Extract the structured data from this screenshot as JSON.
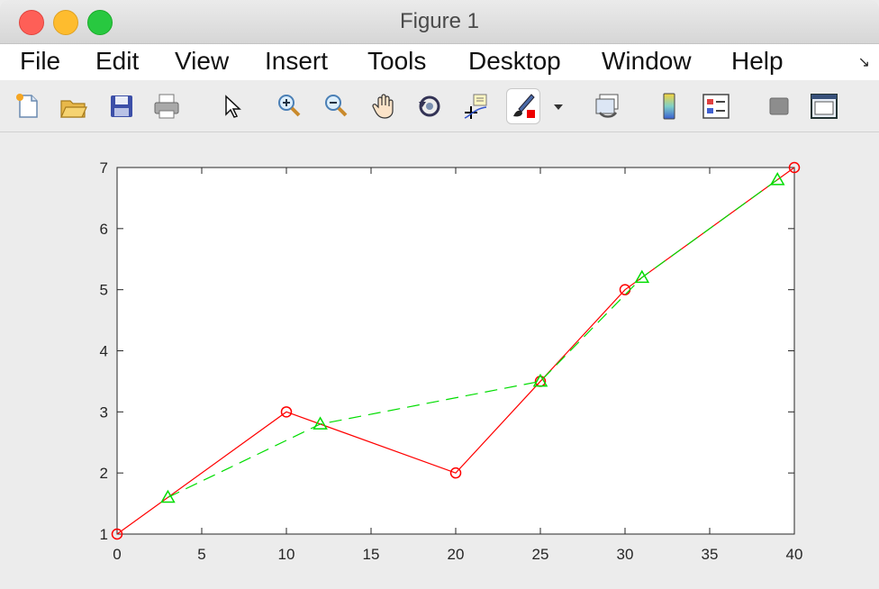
{
  "window": {
    "title": "Figure 1"
  },
  "menu": [
    "File",
    "Edit",
    "View",
    "Insert",
    "Tools",
    "Desktop",
    "Window",
    "Help"
  ],
  "toolbar": {
    "tools": [
      "new-figure-icon",
      "open-folder-icon",
      "save-icon",
      "print-icon",
      "pointer-arrow-icon",
      "zoom-in-icon",
      "zoom-out-icon",
      "pan-hand-icon",
      "rotate-3d-icon",
      "data-cursor-icon",
      "brush-icon",
      "dropdown-arrow-icon",
      "link-plot-icon",
      "colorbar-icon",
      "legend-icon",
      "hide-plot-tools-icon",
      "show-plot-tools-icon"
    ]
  },
  "colors": {
    "series1": "#ff0000",
    "series2": "#00dd00",
    "axes": "#262626",
    "plot_bg": "#ffffff"
  },
  "chart_data": {
    "type": "line",
    "title": "",
    "xlabel": "",
    "ylabel": "",
    "xlim": [
      0,
      40
    ],
    "ylim": [
      1,
      7
    ],
    "xticks": [
      0,
      5,
      10,
      15,
      20,
      25,
      30,
      35,
      40
    ],
    "yticks": [
      1,
      2,
      3,
      4,
      5,
      6,
      7
    ],
    "grid": false,
    "series": [
      {
        "x": [
          0,
          10,
          20,
          25,
          30,
          40
        ],
        "y": [
          1,
          3,
          2,
          3.5,
          5,
          7
        ],
        "color": "#ff0000",
        "marker": "circle",
        "linestyle": "solid"
      },
      {
        "x": [
          3,
          12,
          25,
          31,
          39
        ],
        "y": [
          1.6,
          2.8,
          3.5,
          5.2,
          6.8
        ],
        "color": "#00dd00",
        "marker": "triangle",
        "linestyle": "dashed"
      }
    ]
  }
}
